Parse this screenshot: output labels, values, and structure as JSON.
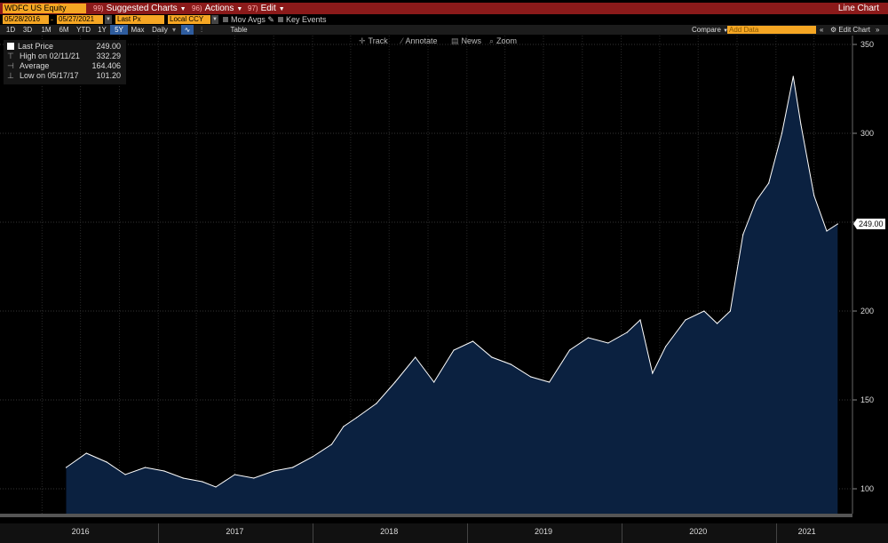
{
  "header": {
    "ticker": "WDFC US Equity",
    "menus": [
      {
        "num": "99)",
        "label": "Suggested Charts"
      },
      {
        "num": "96)",
        "label": "Actions"
      },
      {
        "num": "97)",
        "label": "Edit"
      }
    ],
    "title": "Line Chart"
  },
  "controls": {
    "start_date": "05/28/2016",
    "end_date": "05/27/2021",
    "price_field": "Last Px",
    "currency": "Local CCY",
    "mov_avgs": "Mov Avgs",
    "key_events": "Key Events"
  },
  "periods": [
    "1D",
    "3D",
    "1M",
    "6M",
    "YTD",
    "1Y",
    "5Y",
    "Max"
  ],
  "active_period": "5Y",
  "frequency": "Daily",
  "table_label": "Table",
  "compare_label": "Compare",
  "add_data_placeholder": "Add Data",
  "edit_chart_label": "Edit Chart",
  "tools": [
    "Track",
    "Annotate",
    "News",
    "Zoom"
  ],
  "legend": {
    "last_price_label": "Last Price",
    "last_price_value": "249.00",
    "high_label": "High on 02/11/21",
    "high_value": "332.29",
    "average_label": "Average",
    "average_value": "164.406",
    "low_label": "Low on 05/17/17",
    "low_value": "101.20"
  },
  "last_value_tag": "249.00",
  "colors": {
    "area_fill": "#0b2140",
    "line": "#ffffff",
    "menu_bar": "#8b1a1a",
    "field": "#f5a623",
    "active_tab": "#2e5c9e"
  },
  "chart_data": {
    "type": "area",
    "ylim": [
      86,
      355
    ],
    "yticks": [
      100,
      150,
      200,
      250,
      300,
      350
    ],
    "xlabels": [
      "2016",
      "2017",
      "2018",
      "2019",
      "2020",
      "2021"
    ],
    "grid": true,
    "series": [
      {
        "x": [
          "2016-05-28",
          "2016-07-15",
          "2016-09-01",
          "2016-10-15",
          "2016-12-01",
          "2017-01-15",
          "2017-03-01",
          "2017-04-15",
          "2017-05-17",
          "2017-07-01",
          "2017-08-15",
          "2017-10-01",
          "2017-11-15",
          "2018-01-01",
          "2018-02-15",
          "2018-03-15",
          "2018-04-15",
          "2018-06-01",
          "2018-07-15",
          "2018-09-01",
          "2018-10-15",
          "2018-12-01",
          "2019-01-15",
          "2019-03-01",
          "2019-04-15",
          "2019-06-01",
          "2019-07-15",
          "2019-09-01",
          "2019-10-15",
          "2019-12-01",
          "2020-01-15",
          "2020-02-15",
          "2020-03-15",
          "2020-04-15",
          "2020-06-01",
          "2020-07-15",
          "2020-08-15",
          "2020-09-15",
          "2020-10-15",
          "2020-11-15",
          "2020-12-15",
          "2021-01-15",
          "2021-02-11",
          "2021-03-01",
          "2021-04-01",
          "2021-05-01",
          "2021-05-27"
        ],
        "y": [
          112,
          120,
          115,
          108,
          112,
          110,
          106,
          104,
          101,
          108,
          106,
          110,
          112,
          118,
          125,
          135,
          140,
          148,
          160,
          174,
          160,
          178,
          183,
          174,
          170,
          163,
          160,
          178,
          185,
          182,
          188,
          195,
          165,
          180,
          195,
          200,
          193,
          200,
          243,
          262,
          272,
          300,
          332,
          305,
          265,
          245,
          249
        ]
      }
    ]
  }
}
